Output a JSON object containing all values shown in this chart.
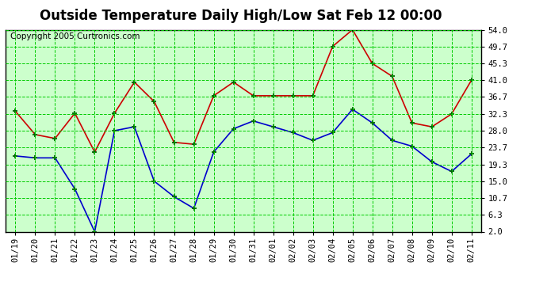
{
  "title": "Outside Temperature Daily High/Low Sat Feb 12 00:00",
  "copyright": "Copyright 2005 Curtronics.com",
  "x_labels": [
    "01/19",
    "01/20",
    "01/21",
    "01/22",
    "01/23",
    "01/24",
    "01/25",
    "01/26",
    "01/27",
    "01/28",
    "01/29",
    "01/30",
    "01/31",
    "02/01",
    "02/02",
    "02/03",
    "02/04",
    "02/05",
    "02/06",
    "02/07",
    "02/08",
    "02/09",
    "02/10",
    "02/11"
  ],
  "high_values": [
    33.0,
    27.0,
    26.0,
    32.5,
    22.5,
    32.5,
    40.5,
    35.5,
    25.0,
    24.5,
    37.0,
    40.5,
    37.0,
    37.0,
    37.0,
    37.0,
    49.7,
    54.0,
    45.3,
    42.0,
    30.0,
    29.0,
    32.3,
    41.0
  ],
  "low_values": [
    21.5,
    21.0,
    21.0,
    13.0,
    2.0,
    28.0,
    29.0,
    15.0,
    11.0,
    8.0,
    22.5,
    28.5,
    30.5,
    29.0,
    27.5,
    25.5,
    27.5,
    33.5,
    30.0,
    25.5,
    24.0,
    20.0,
    17.5,
    22.0
  ],
  "high_color": "#cc0000",
  "low_color": "#0000cc",
  "marker_color": "#006600",
  "bg_color": "#ffffff",
  "plot_bg_color": "#ccffcc",
  "grid_color": "#00cc00",
  "border_color": "#000000",
  "title_color": "#000000",
  "copyright_color": "#000000",
  "yticks": [
    2.0,
    6.3,
    10.7,
    15.0,
    19.3,
    23.7,
    28.0,
    32.3,
    36.7,
    41.0,
    45.3,
    49.7,
    54.0
  ],
  "ylim": [
    2.0,
    54.0
  ],
  "title_fontsize": 12,
  "tick_fontsize": 7.5,
  "copyright_fontsize": 7.5
}
